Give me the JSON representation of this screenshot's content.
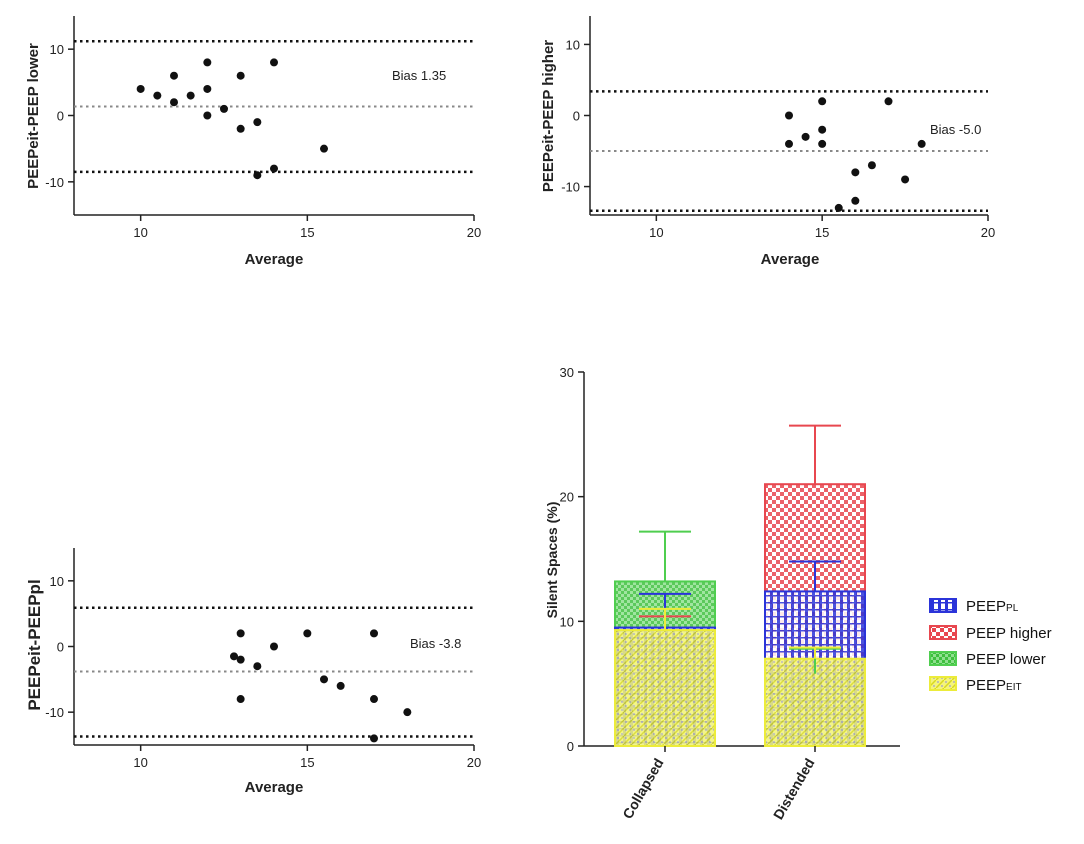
{
  "chart_data": [
    {
      "type": "scatter",
      "panel": "top-left",
      "xlabel": "Average",
      "ylabel": "PEEPeit-PEEP lower",
      "xlim": [
        8,
        20
      ],
      "ylim": [
        -15,
        15
      ],
      "xticks": [
        10,
        15,
        20
      ],
      "yticks": [
        -10,
        0,
        10
      ],
      "bias_label": "Bias 1.35",
      "bias": 1.35,
      "upper_loa": 11.2,
      "lower_loa": -8.5,
      "points": [
        [
          10,
          4
        ],
        [
          10.5,
          3
        ],
        [
          11,
          6
        ],
        [
          11,
          2
        ],
        [
          11.5,
          3
        ],
        [
          12,
          8
        ],
        [
          12,
          4
        ],
        [
          12,
          0
        ],
        [
          12.5,
          1
        ],
        [
          13,
          6
        ],
        [
          13,
          -2
        ],
        [
          13.5,
          -1
        ],
        [
          13.5,
          -9
        ],
        [
          14,
          8
        ],
        [
          14,
          -8
        ],
        [
          15.5,
          -5
        ]
      ]
    },
    {
      "type": "scatter",
      "panel": "top-right",
      "xlabel": "Average",
      "ylabel": "PEEPeit-PEEP higher",
      "xlim": [
        8,
        20
      ],
      "ylim": [
        -14,
        14
      ],
      "xticks": [
        10,
        15,
        20
      ],
      "yticks": [
        -10,
        0,
        10
      ],
      "bias_label": "Bias -5.0",
      "bias": -5.0,
      "upper_loa": 3.4,
      "lower_loa": -13.4,
      "points": [
        [
          14,
          0
        ],
        [
          14,
          -4
        ],
        [
          14.5,
          -3
        ],
        [
          15,
          2
        ],
        [
          15,
          -2
        ],
        [
          15,
          -4
        ],
        [
          15.5,
          -13
        ],
        [
          16,
          -8
        ],
        [
          16,
          -12
        ],
        [
          16.5,
          -7
        ],
        [
          17,
          2
        ],
        [
          17.5,
          -9
        ],
        [
          18,
          -4
        ]
      ]
    },
    {
      "type": "scatter",
      "panel": "bottom-left",
      "xlabel": "Average",
      "ylabel": "PEEPeit-PEEPpl",
      "xlim": [
        8,
        20
      ],
      "ylim": [
        -15,
        15
      ],
      "xticks": [
        10,
        15,
        20
      ],
      "yticks": [
        -10,
        0,
        10
      ],
      "bias_label": "Bias -3.8",
      "bias": -3.8,
      "upper_loa": 5.9,
      "lower_loa": -13.7,
      "points": [
        [
          12.8,
          -1.5
        ],
        [
          13,
          2
        ],
        [
          13,
          -2
        ],
        [
          13,
          -8
        ],
        [
          13.5,
          -3
        ],
        [
          14,
          0
        ],
        [
          15,
          2
        ],
        [
          15.5,
          -5
        ],
        [
          16,
          -6
        ],
        [
          17,
          2
        ],
        [
          17,
          -8
        ],
        [
          17,
          -14
        ],
        [
          18,
          -10
        ]
      ]
    },
    {
      "type": "bar",
      "panel": "bottom-right",
      "ylabel": "Silent Spaces (%)",
      "ylim": [
        0,
        30
      ],
      "yticks": [
        0,
        10,
        20,
        30
      ],
      "categories": [
        "Collapsed",
        "Distended"
      ],
      "legend": [
        "PEEPPL",
        "PEEP higher",
        "PEEP lower",
        "PEEPEIT"
      ],
      "legend_main": [
        "PEEP",
        "PEEP higher",
        "PEEP lower",
        "PEEP"
      ],
      "legend_sub": [
        "PL",
        "",
        "",
        "EIT"
      ],
      "legend_position": "right",
      "series": [
        {
          "name": "PEEP higher",
          "values": [
            9.5,
            21.0
          ],
          "errors": [
            0.9,
            4.7
          ],
          "color": "#e8474f"
        },
        {
          "name": "PEEP lower",
          "values": [
            13.2,
            5.8
          ],
          "errors": [
            4.0,
            2.0
          ],
          "color": "#4fce4f"
        },
        {
          "name": "PEEPPL",
          "values": [
            9.5,
            12.4
          ],
          "errors": [
            2.7,
            2.4
          ],
          "color": "#2b34d9"
        },
        {
          "name": "PEEPEIT",
          "values": [
            9.3,
            7.0
          ],
          "errors": [
            1.7,
            0.9
          ],
          "color": "#ecec3a"
        }
      ]
    }
  ]
}
